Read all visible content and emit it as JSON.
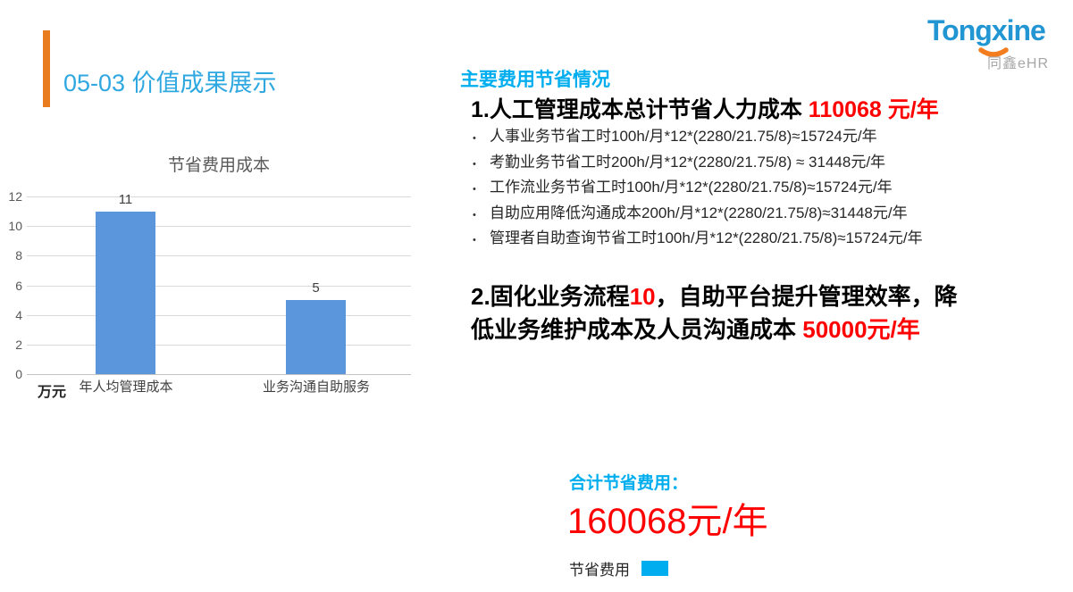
{
  "page": {
    "title": "05-03 价值成果展示"
  },
  "logo": {
    "brand": "Tongxine",
    "subtitle": "同鑫eHR"
  },
  "colors": {
    "accent_orange": "#E87C1E",
    "title_blue": "#2FA8E1",
    "heading_cyan": "#00AEEF",
    "highlight_red": "#FE0000",
    "bar_blue": "#5B96DD",
    "logo_blue": "#2196D3",
    "logo_orange": "#F47D20"
  },
  "chart_data": {
    "type": "bar",
    "title": "节省费用成本",
    "unit_label": "万元",
    "categories": [
      "年人均管理成本",
      "业务沟通自助服务"
    ],
    "values": [
      11,
      5
    ],
    "data_labels": [
      "11",
      "5"
    ],
    "ylim": [
      0,
      12
    ],
    "ytick_step": 2,
    "grid": true,
    "legend_position": "none",
    "bar_color": "#5B96DD"
  },
  "savings": {
    "heading": "主要费用节省情况",
    "item1": {
      "black": "1.人工管理成本总计节省人力成本 ",
      "red": "110068 元/年"
    },
    "bullets": [
      "人事业务节省工时100h/月*12*(2280/21.75/8)≈15724元/年",
      "考勤业务节省工时200h/月*12*(2280/21.75/8) ≈ 31448元/年",
      "工作流业务节省工时100h/月*12*(2280/21.75/8)≈15724元/年",
      "自助应用降低沟通成本200h/月*12*(2280/21.75/8)≈31448元/年",
      "管理者自助查询节省工时100h/月*12*(2280/21.75/8)≈15724元/年"
    ],
    "item2_parts": [
      {
        "text": "2.固化业务流程",
        "style": "black",
        "break_after": false
      },
      {
        "text": "10",
        "style": "red",
        "break_after": false
      },
      {
        "text": "，自助平台提升管理效率，降",
        "style": "black",
        "break_after": true
      },
      {
        "text": "低业务维护成本及人员沟通成本 ",
        "style": "black",
        "break_after": false
      },
      {
        "text": "50000元/年",
        "style": "red",
        "break_after": false
      }
    ]
  },
  "summary": {
    "label": "合计节省费用：",
    "value": "160068元/年",
    "legend_label": "节省费用"
  }
}
